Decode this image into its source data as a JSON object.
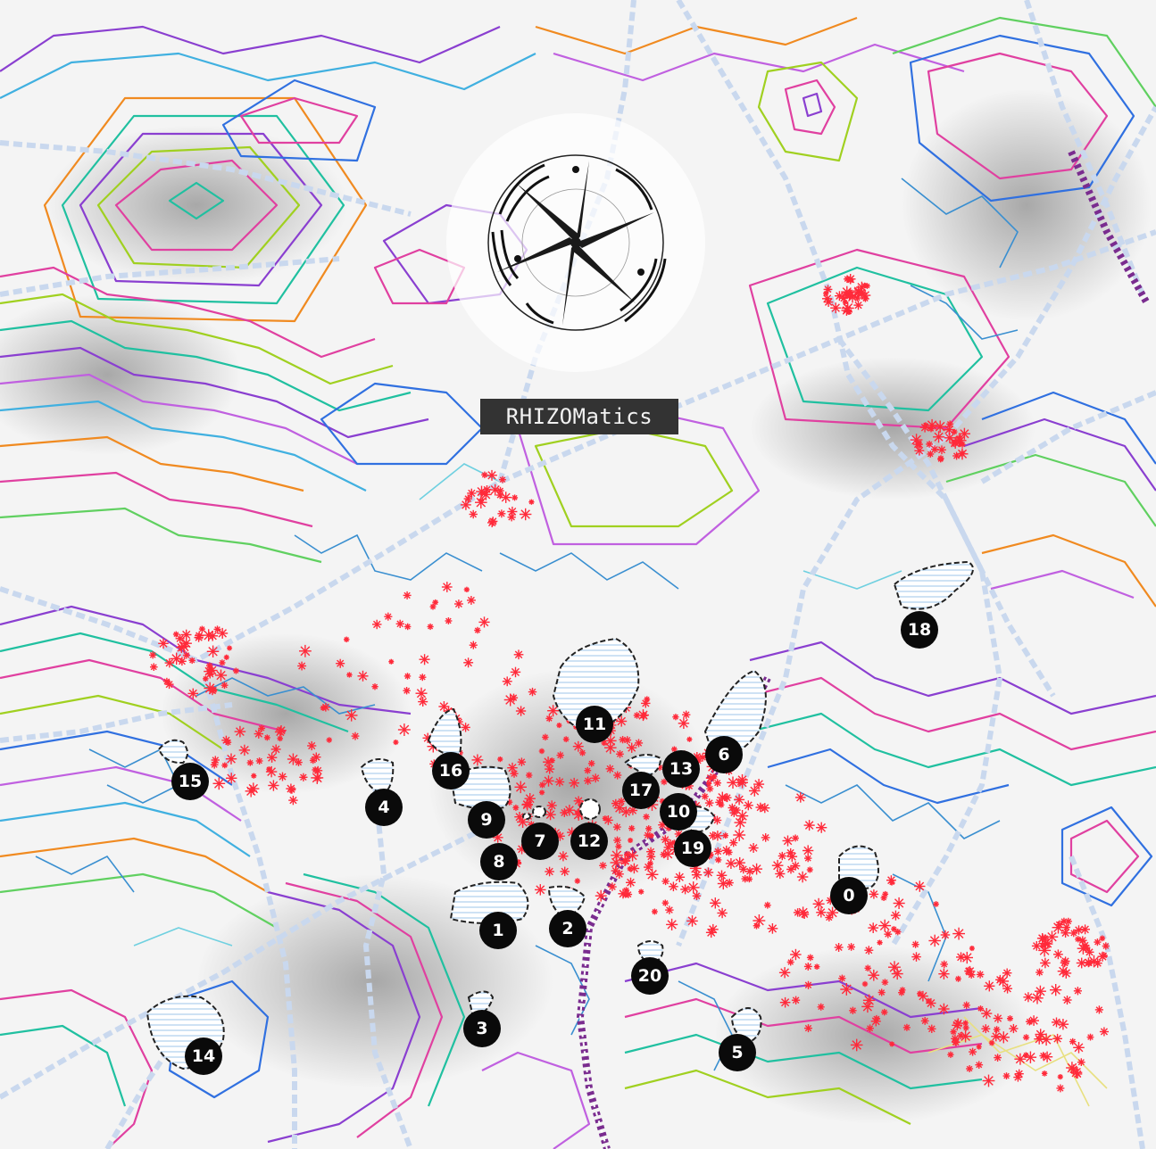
{
  "title": "RHIZOMatics",
  "icons": {
    "compass": "compass-rose-icon"
  },
  "colors": {
    "background": "#f4f4f4",
    "label_bg": "#333333",
    "marker_bg": "#0a0a0a",
    "marker_text": "#ffffff",
    "hotspot": "#ff2a3a",
    "road": "#c9d8ee",
    "route": "#7a2c8f",
    "contours": [
      "#8a3fd0",
      "#e040a0",
      "#20c0a0",
      "#a0d020",
      "#3070e0",
      "#f08a20",
      "#40b0e0",
      "#c060e0",
      "#60d060"
    ]
  },
  "markers": [
    {
      "id": "0",
      "label": "0"
    },
    {
      "id": "1",
      "label": "1"
    },
    {
      "id": "2",
      "label": "2"
    },
    {
      "id": "3",
      "label": "3"
    },
    {
      "id": "4",
      "label": "4"
    },
    {
      "id": "5",
      "label": "5"
    },
    {
      "id": "6",
      "label": "6"
    },
    {
      "id": "7",
      "label": "7"
    },
    {
      "id": "8",
      "label": "8"
    },
    {
      "id": "9",
      "label": "9"
    },
    {
      "id": "10",
      "label": "10"
    },
    {
      "id": "11",
      "label": "11"
    },
    {
      "id": "12",
      "label": "12"
    },
    {
      "id": "13",
      "label": "13"
    },
    {
      "id": "14",
      "label": "14"
    },
    {
      "id": "15",
      "label": "15"
    },
    {
      "id": "16",
      "label": "16"
    },
    {
      "id": "17",
      "label": "17"
    },
    {
      "id": "18",
      "label": "18"
    },
    {
      "id": "19",
      "label": "19"
    },
    {
      "id": "20",
      "label": "20"
    }
  ]
}
